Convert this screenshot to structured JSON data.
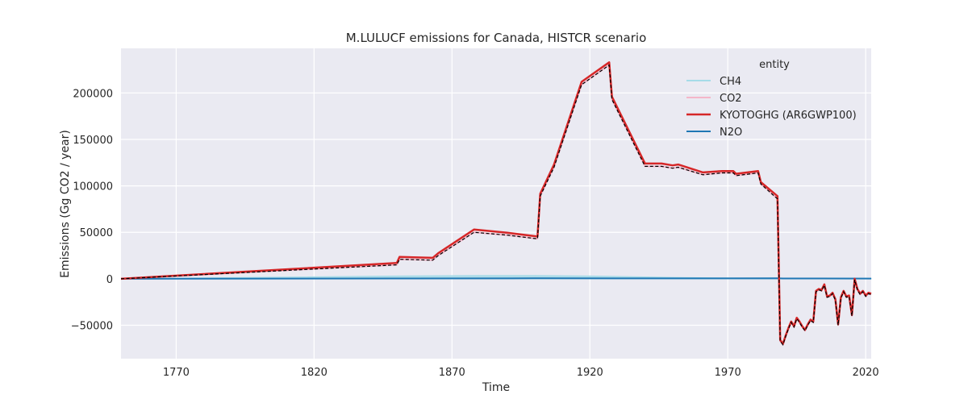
{
  "chart_data": {
    "type": "line",
    "title": "M.LULUCF emissions for Canada, HISTCR scenario",
    "xlabel": "Time",
    "ylabel": "Emissions (Gg CO2 / year)",
    "xlim": [
      1750,
      2022
    ],
    "ylim": [
      -86000,
      248000
    ],
    "x_ticks": [
      1770,
      1820,
      1870,
      1920,
      1970,
      2020
    ],
    "y_ticks": [
      -50000,
      0,
      50000,
      100000,
      150000,
      200000
    ],
    "y_tick_labels": [
      "−50000",
      "0",
      "50000",
      "100000",
      "150000",
      "200000"
    ],
    "grid": true,
    "legend": {
      "title": "entity",
      "placement": "top-right"
    },
    "series": [
      {
        "name": "CH4",
        "color": "#a6dbe8",
        "style": "filled-area",
        "points": [
          [
            1750,
            0
          ],
          [
            1800,
            1500
          ],
          [
            1850,
            3000
          ],
          [
            1880,
            3500
          ],
          [
            1900,
            3500
          ],
          [
            1920,
            3000
          ],
          [
            1950,
            1500
          ],
          [
            1970,
            800
          ],
          [
            1988,
            700
          ],
          [
            1990,
            500
          ],
          [
            2022,
            400
          ]
        ]
      },
      {
        "name": "CO2",
        "color": "#f4b6c9",
        "style": "line",
        "points": [
          [
            1750,
            0
          ],
          [
            1850,
            15000
          ],
          [
            1851,
            21000
          ],
          [
            1863,
            20000
          ],
          [
            1865,
            25000
          ],
          [
            1878,
            50000
          ],
          [
            1890,
            47000
          ],
          [
            1901,
            43000
          ],
          [
            1902,
            89000
          ],
          [
            1907,
            120000
          ],
          [
            1917,
            209000
          ],
          [
            1927,
            230000
          ],
          [
            1928,
            193000
          ],
          [
            1940,
            121000
          ],
          [
            1946,
            121000
          ],
          [
            1950,
            119000
          ],
          [
            1952,
            120000
          ],
          [
            1961,
            112000
          ],
          [
            1968,
            114000
          ],
          [
            1972,
            114000
          ],
          [
            1973,
            111000
          ],
          [
            1981,
            114000
          ],
          [
            1982,
            102000
          ],
          [
            1988,
            86000
          ],
          [
            1989,
            -67000
          ],
          [
            1990,
            -71000
          ],
          [
            1991,
            -62000
          ],
          [
            1992,
            -54000
          ],
          [
            1993,
            -47000
          ],
          [
            1994,
            -52000
          ],
          [
            1995,
            -43000
          ],
          [
            1996,
            -47000
          ],
          [
            1997,
            -52000
          ],
          [
            1998,
            -56000
          ],
          [
            1999,
            -50000
          ],
          [
            2000,
            -45000
          ],
          [
            2001,
            -47000
          ],
          [
            2002,
            -14000
          ],
          [
            2003,
            -12000
          ],
          [
            2004,
            -13000
          ],
          [
            2005,
            -7000
          ],
          [
            2006,
            -20000
          ],
          [
            2007,
            -19000
          ],
          [
            2008,
            -16000
          ],
          [
            2009,
            -23000
          ],
          [
            2010,
            -50000
          ],
          [
            2011,
            -21000
          ],
          [
            2012,
            -14000
          ],
          [
            2013,
            -20000
          ],
          [
            2014,
            -19000
          ],
          [
            2015,
            -40000
          ],
          [
            2016,
            -1000
          ],
          [
            2017,
            -12000
          ],
          [
            2018,
            -17000
          ],
          [
            2019,
            -14000
          ],
          [
            2020,
            -19000
          ],
          [
            2021,
            -16000
          ],
          [
            2022,
            -17000
          ]
        ]
      },
      {
        "name": "KYOTOGHG (AR6GWP100)",
        "color": "#d62728",
        "style": "line",
        "points": [
          [
            1750,
            0
          ],
          [
            1850,
            17000
          ],
          [
            1851,
            23500
          ],
          [
            1863,
            22500
          ],
          [
            1865,
            27500
          ],
          [
            1878,
            53000
          ],
          [
            1890,
            49500
          ],
          [
            1901,
            45500
          ],
          [
            1902,
            91500
          ],
          [
            1907,
            123000
          ],
          [
            1917,
            212000
          ],
          [
            1927,
            233000
          ],
          [
            1928,
            196000
          ],
          [
            1940,
            124000
          ],
          [
            1946,
            124000
          ],
          [
            1950,
            122000
          ],
          [
            1952,
            123000
          ],
          [
            1961,
            114500
          ],
          [
            1968,
            116000
          ],
          [
            1972,
            116000
          ],
          [
            1973,
            113000
          ],
          [
            1981,
            116000
          ],
          [
            1982,
            104000
          ],
          [
            1988,
            89000
          ],
          [
            1989,
            -66000
          ],
          [
            1990,
            -70000
          ],
          [
            1991,
            -61000
          ],
          [
            1992,
            -53000
          ],
          [
            1993,
            -46000
          ],
          [
            1994,
            -51000
          ],
          [
            1995,
            -42000
          ],
          [
            1996,
            -46000
          ],
          [
            1997,
            -51000
          ],
          [
            1998,
            -55000
          ],
          [
            1999,
            -49000
          ],
          [
            2000,
            -44000
          ],
          [
            2001,
            -46000
          ],
          [
            2002,
            -13000
          ],
          [
            2003,
            -11000
          ],
          [
            2004,
            -12000
          ],
          [
            2005,
            -6000
          ],
          [
            2006,
            -19000
          ],
          [
            2007,
            -18000
          ],
          [
            2008,
            -15000
          ],
          [
            2009,
            -22000
          ],
          [
            2010,
            -49000
          ],
          [
            2011,
            -20000
          ],
          [
            2012,
            -13000
          ],
          [
            2013,
            -19000
          ],
          [
            2014,
            -18000
          ],
          [
            2015,
            -39000
          ],
          [
            2016,
            0
          ],
          [
            2017,
            -11000
          ],
          [
            2018,
            -16000
          ],
          [
            2019,
            -13000
          ],
          [
            2020,
            -18000
          ],
          [
            2021,
            -15000
          ],
          [
            2022,
            -16000
          ]
        ]
      },
      {
        "name": "N2O",
        "color": "#1f77b4",
        "style": "line",
        "points": [
          [
            1750,
            0
          ],
          [
            1850,
            300
          ],
          [
            1900,
            500
          ],
          [
            1950,
            400
          ],
          [
            1988,
            500
          ],
          [
            1990,
            300
          ],
          [
            2022,
            200
          ]
        ]
      }
    ],
    "total_line": {
      "color": "#000000",
      "style": "dashed",
      "points": [
        [
          1750,
          0
        ],
        [
          1850,
          15000
        ],
        [
          1851,
          21000
        ],
        [
          1863,
          20000
        ],
        [
          1865,
          25000
        ],
        [
          1878,
          50000
        ],
        [
          1890,
          47000
        ],
        [
          1901,
          43000
        ],
        [
          1902,
          89000
        ],
        [
          1907,
          120000
        ],
        [
          1917,
          209000
        ],
        [
          1927,
          230000
        ],
        [
          1928,
          193000
        ],
        [
          1940,
          121000
        ],
        [
          1946,
          121000
        ],
        [
          1950,
          119000
        ],
        [
          1952,
          120000
        ],
        [
          1961,
          112000
        ],
        [
          1968,
          114000
        ],
        [
          1972,
          114000
        ],
        [
          1973,
          111000
        ],
        [
          1981,
          114000
        ],
        [
          1982,
          102000
        ],
        [
          1988,
          86000
        ],
        [
          1989,
          -67000
        ],
        [
          1990,
          -71000
        ],
        [
          1991,
          -62000
        ],
        [
          1992,
          -54000
        ],
        [
          1993,
          -47000
        ],
        [
          1994,
          -52000
        ],
        [
          1995,
          -43000
        ],
        [
          1996,
          -47000
        ],
        [
          1997,
          -52000
        ],
        [
          1998,
          -56000
        ],
        [
          1999,
          -50000
        ],
        [
          2000,
          -45000
        ],
        [
          2001,
          -47000
        ],
        [
          2002,
          -14000
        ],
        [
          2003,
          -12000
        ],
        [
          2004,
          -13000
        ],
        [
          2005,
          -7000
        ],
        [
          2006,
          -20000
        ],
        [
          2007,
          -19000
        ],
        [
          2008,
          -16000
        ],
        [
          2009,
          -23000
        ],
        [
          2010,
          -50000
        ],
        [
          2011,
          -21000
        ],
        [
          2012,
          -14000
        ],
        [
          2013,
          -20000
        ],
        [
          2014,
          -19000
        ],
        [
          2015,
          -40000
        ],
        [
          2016,
          -1000
        ],
        [
          2017,
          -12000
        ],
        [
          2018,
          -17000
        ],
        [
          2019,
          -14000
        ],
        [
          2020,
          -19000
        ],
        [
          2021,
          -16000
        ],
        [
          2022,
          -17000
        ]
      ]
    }
  }
}
